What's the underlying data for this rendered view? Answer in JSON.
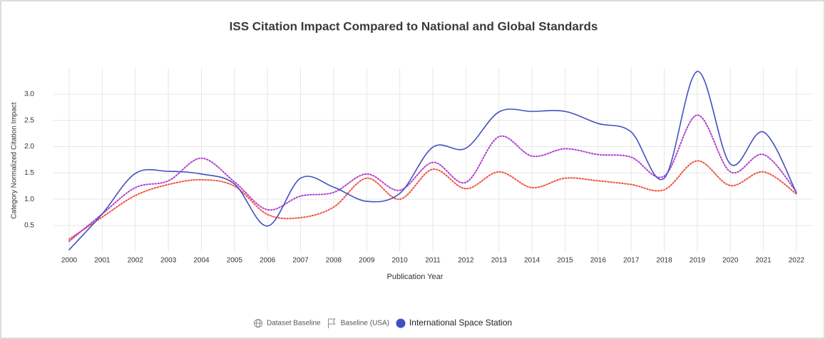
{
  "chart_data": {
    "type": "line",
    "title": "ISS Citation Impact Compared to National and Global Standards",
    "x_label": "Publication Year",
    "y_label": "Category Normalized Citation Impact",
    "categories": [
      "2000",
      "2001",
      "2002",
      "2003",
      "2004",
      "2005",
      "2006",
      "2007",
      "2008",
      "2009",
      "2010",
      "2011",
      "2012",
      "2013",
      "2014",
      "2015",
      "2016",
      "2017",
      "2018",
      "2019",
      "2020",
      "2021",
      "2022"
    ],
    "series": [
      {
        "name": "Dataset Baseline",
        "color": "#f0503c",
        "style": "dotted",
        "values": [
          0.24,
          0.66,
          1.07,
          1.28,
          1.37,
          1.25,
          0.71,
          0.65,
          0.85,
          1.4,
          1.0,
          1.57,
          1.2,
          1.52,
          1.22,
          1.4,
          1.35,
          1.28,
          1.18,
          1.73,
          1.26,
          1.52,
          1.1
        ]
      },
      {
        "name": "Baseline (USA)",
        "color": "#b03ed0",
        "style": "dotted",
        "values": [
          0.2,
          0.72,
          1.22,
          1.35,
          1.78,
          1.33,
          0.8,
          1.06,
          1.13,
          1.48,
          1.17,
          1.7,
          1.32,
          2.19,
          1.82,
          1.96,
          1.85,
          1.8,
          1.44,
          2.6,
          1.52,
          1.85,
          1.14
        ]
      },
      {
        "name": "International Space Station",
        "color": "#4150c0",
        "style": "solid",
        "values": [
          0.04,
          0.72,
          1.49,
          1.53,
          1.48,
          1.29,
          0.49,
          1.4,
          1.23,
          0.96,
          1.11,
          1.99,
          1.97,
          2.66,
          2.67,
          2.67,
          2.44,
          2.28,
          1.4,
          3.43,
          1.67,
          2.28,
          1.12
        ]
      }
    ],
    "ylim": [
      0,
      3.5
    ],
    "yticks": [
      0.5,
      {
        "value": 1,
        "label": "1.0"
      },
      1.5,
      {
        "value": 2,
        "label": "2.0"
      },
      2.5,
      {
        "value": 3,
        "label": "3.0"
      }
    ],
    "grid": true,
    "legend": "bottom"
  }
}
